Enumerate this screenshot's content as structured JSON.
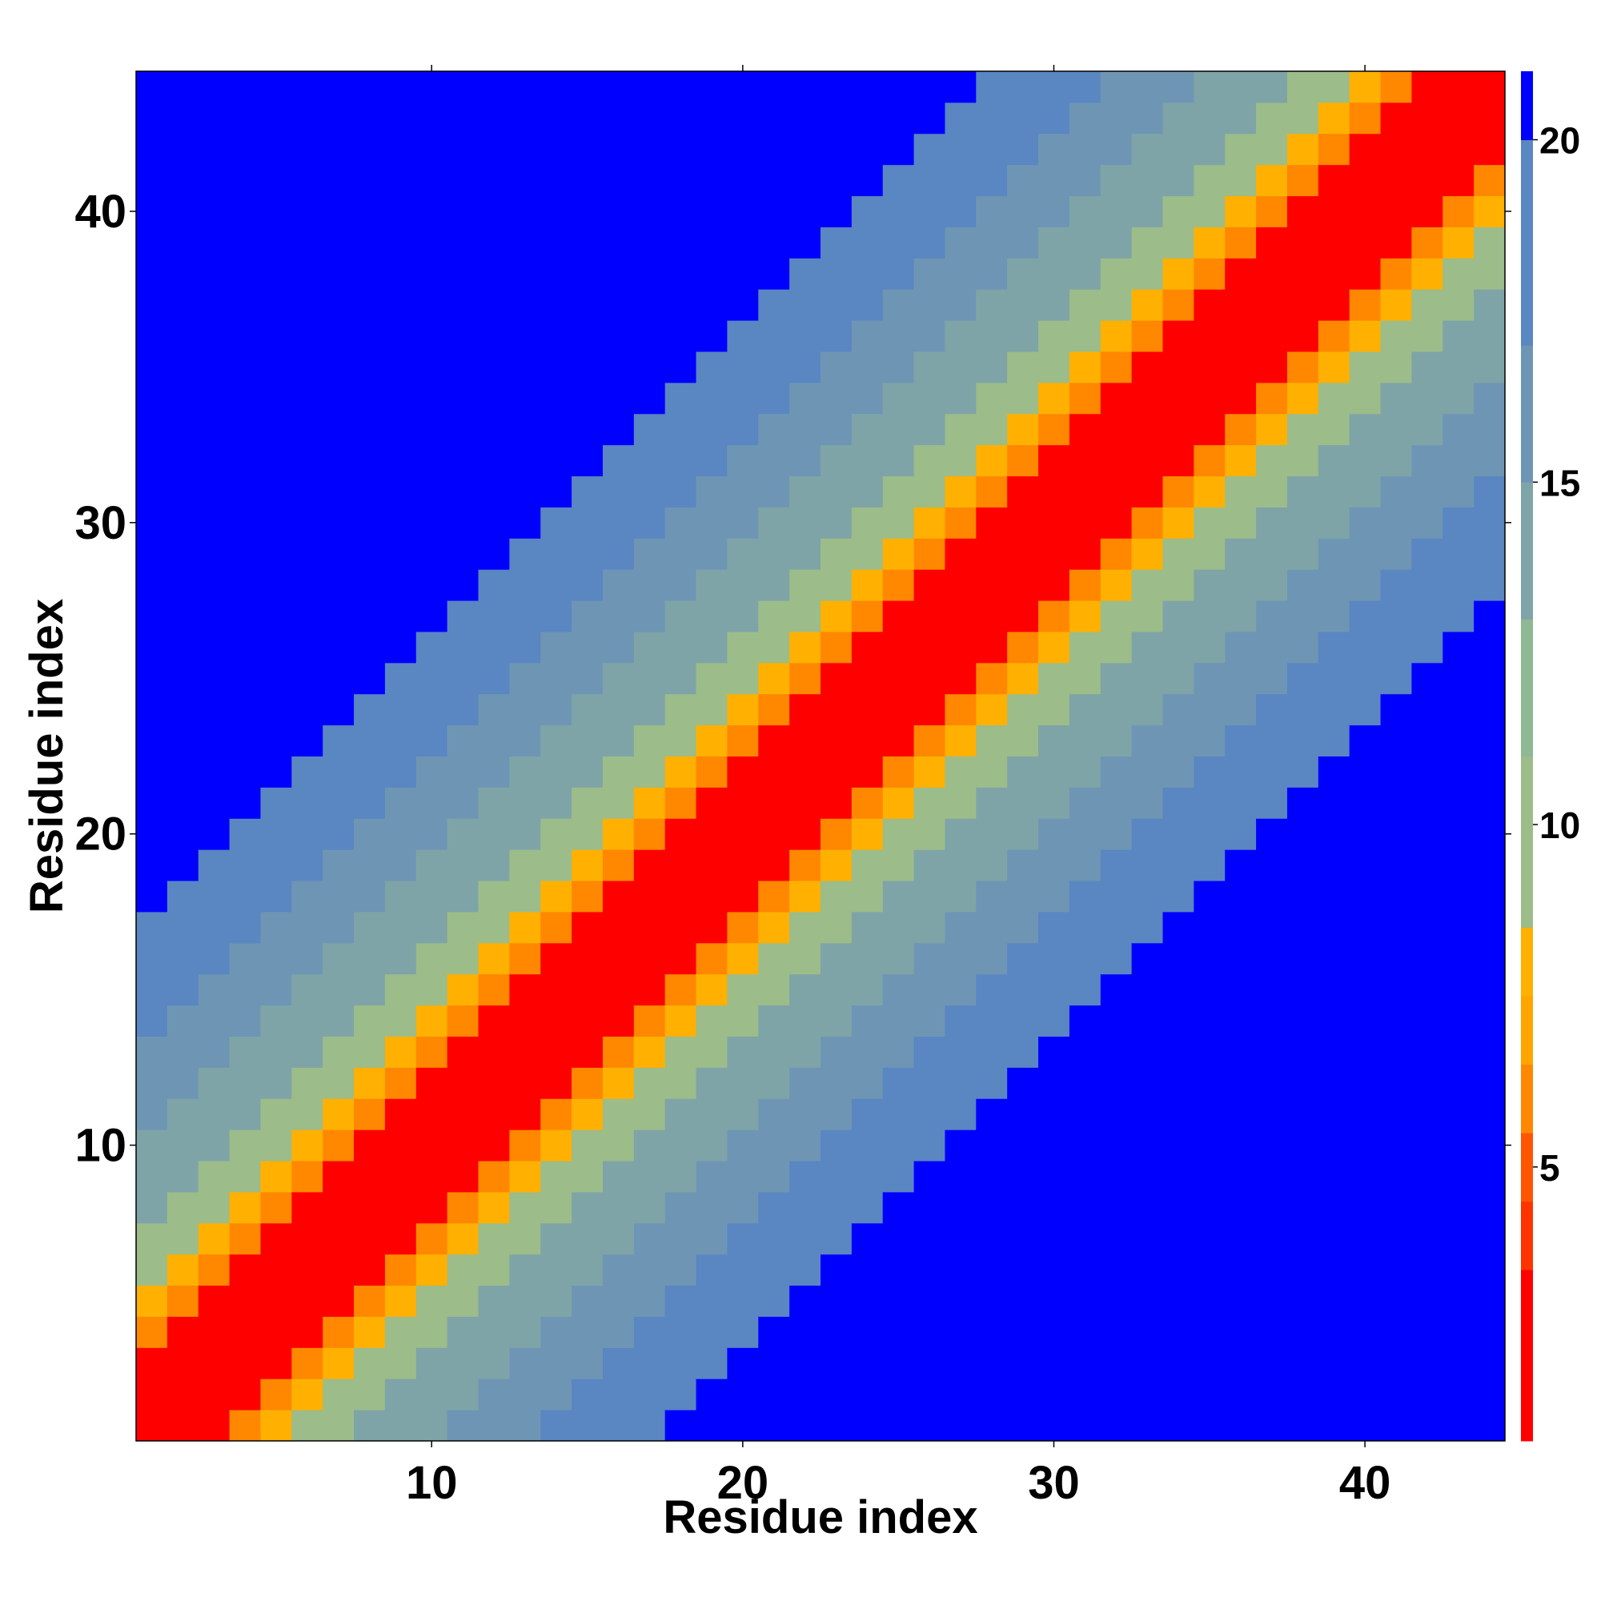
{
  "chart_data": {
    "type": "heatmap",
    "title": "",
    "xlabel": "Residue index",
    "ylabel": "Residue index",
    "n": 44,
    "x_range": [
      1,
      44
    ],
    "y_range": [
      1,
      44
    ],
    "x_ticks": [
      10,
      20,
      30,
      40
    ],
    "y_ticks": [
      10,
      20,
      30,
      40
    ],
    "grid": false,
    "colorbar": {
      "placement": "right",
      "ticks": [
        5,
        10,
        15,
        20
      ],
      "range": [
        1,
        21
      ],
      "bands": [
        {
          "from": 1,
          "to": 3.5,
          "color": "#ff0000"
        },
        {
          "from": 3.5,
          "to": 4.5,
          "color": "#ff3300"
        },
        {
          "from": 4.5,
          "to": 5.5,
          "color": "#ff5500"
        },
        {
          "from": 5.5,
          "to": 6.5,
          "color": "#ff8800"
        },
        {
          "from": 6.5,
          "to": 7.5,
          "color": "#ffa500"
        },
        {
          "from": 7.5,
          "to": 8.5,
          "color": "#ffb000"
        },
        {
          "from": 8.5,
          "to": 11,
          "color": "#9cbc8a"
        },
        {
          "from": 11,
          "to": 13,
          "color": "#8fb894"
        },
        {
          "from": 13,
          "to": 15,
          "color": "#7ea4a8"
        },
        {
          "from": 15,
          "to": 17,
          "color": "#6e96b4"
        },
        {
          "from": 17,
          "to": 20,
          "color": "#5a86c2"
        },
        {
          "from": 20,
          "to": 21,
          "color": "#0000ff"
        }
      ]
    },
    "description_values": "Symmetric residue-residue distance-like map: value grows with |i-j| (near 1 on diagonal, saturating at ~21 far from diagonal).",
    "band_offsets": [
      {
        "max_offset": 2,
        "value": 2
      },
      {
        "max_offset": 3,
        "value": 6
      },
      {
        "max_offset": 4,
        "value": 8
      },
      {
        "max_offset": 6,
        "value": 10
      },
      {
        "max_offset": 9,
        "value": 13
      },
      {
        "max_offset": 12,
        "value": 16
      },
      {
        "max_offset": 16,
        "value": 18
      },
      {
        "max_offset": 100,
        "value": 21
      }
    ]
  },
  "colors": {
    "background": "#ffffff",
    "far": "#0000ff",
    "near": "#ff0000"
  }
}
